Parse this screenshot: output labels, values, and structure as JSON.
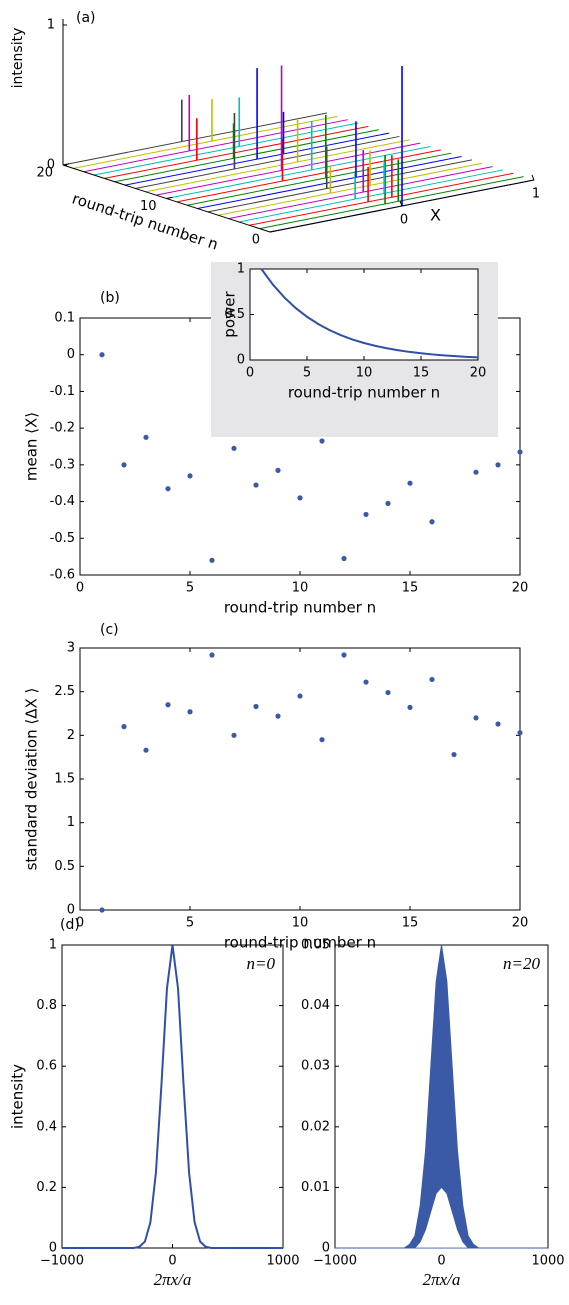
{
  "chart_data": [
    {
      "type": "waterfall",
      "panel_label": "(a)",
      "xlabel": "X",
      "ylabel": "round-trip number n",
      "zlabel": "intensity",
      "xlim": [
        -1,
        1
      ],
      "xticks": [
        0,
        1
      ],
      "ylim": [
        0,
        20
      ],
      "yticks": [
        0,
        10,
        20
      ],
      "zlim": [
        0,
        1
      ],
      "zticks": [
        0,
        1
      ],
      "colors": [
        "#0000ff",
        "#008000",
        "#ff0000",
        "#00bfbf",
        "#bf00bf",
        "#bfbf00",
        "#404040"
      ],
      "n": [
        0,
        1,
        1,
        2,
        2,
        3,
        3,
        4,
        5,
        5,
        6,
        7,
        8,
        9,
        10,
        11,
        12,
        13,
        14,
        14,
        15,
        16,
        17,
        18,
        19,
        20
      ],
      "x": [
        0,
        -0.05,
        0.05,
        -0.1,
        0.08,
        -0.12,
        0.1,
        0.02,
        -0.15,
        0.15,
        -0.1,
        0.2,
        0.05,
        -0.2,
        0.1,
        -0.05,
        0.15,
        -0.25,
        0.0,
        0.2,
        -0.1,
        -0.3,
        0.1,
        -0.2,
        0.05,
        -0.1
      ],
      "values": [
        1,
        0.35,
        0.3,
        0.25,
        0.3,
        0.2,
        0.22,
        0.3,
        0.2,
        0.25,
        0.3,
        0.4,
        0.45,
        0.3,
        0.35,
        0.75,
        0.3,
        0.4,
        0.65,
        0.3,
        0.25,
        0.3,
        0.35,
        0.4,
        0.3,
        0.3
      ]
    },
    {
      "type": "scatter",
      "panel_label": "(b)",
      "xlabel": "round-trip number n",
      "ylabel": "mean ⟨X⟩",
      "color": "#3a5aa8",
      "xlim": [
        0,
        20
      ],
      "xticks": [
        0,
        5,
        10,
        15,
        20
      ],
      "ylim": [
        -0.6,
        0.1
      ],
      "yticks": [
        -0.6,
        -0.5,
        -0.4,
        -0.3,
        -0.2,
        -0.1,
        0,
        0.1
      ],
      "x": [
        1,
        2,
        3,
        4,
        5,
        6,
        7,
        8,
        9,
        10,
        11,
        12,
        13,
        14,
        15,
        16,
        17,
        18,
        19,
        20
      ],
      "values": [
        0,
        -0.3,
        -0.225,
        -0.365,
        -0.33,
        -0.56,
        -0.255,
        -0.355,
        -0.315,
        -0.39,
        -0.235,
        -0.555,
        -0.435,
        -0.405,
        -0.35,
        -0.455,
        null,
        -0.32,
        -0.3,
        -0.265
      ]
    },
    {
      "type": "line",
      "xlabel": "round-trip number n",
      "ylabel": "power",
      "color": "#2f4fa8",
      "background": "#e6e6e8",
      "xlim": [
        0,
        20
      ],
      "xticks": [
        0,
        5,
        10,
        15,
        20
      ],
      "ylim": [
        0,
        1
      ],
      "yticks": [
        0,
        0.5,
        1
      ],
      "x": [
        1,
        2,
        3,
        4,
        5,
        6,
        7,
        8,
        9,
        10,
        11,
        12,
        13,
        14,
        15,
        16,
        17,
        18,
        19,
        20
      ],
      "values": [
        1,
        0.83,
        0.689,
        0.572,
        0.475,
        0.394,
        0.327,
        0.271,
        0.225,
        0.187,
        0.155,
        0.129,
        0.107,
        0.0887,
        0.0736,
        0.0611,
        0.0507,
        0.0421,
        0.0349,
        0.029
      ]
    },
    {
      "type": "scatter",
      "panel_label": "(c)",
      "xlabel": "round-trip number n",
      "ylabel": "standard deviation  ⟨ΔX ⟩",
      "color": "#3a5aa8",
      "xlim": [
        0,
        20
      ],
      "xticks": [
        0,
        5,
        10,
        15,
        20
      ],
      "ylim": [
        0,
        3
      ],
      "yticks": [
        0,
        0.5,
        1,
        1.5,
        2,
        2.5,
        3
      ],
      "x": [
        1,
        2,
        3,
        4,
        5,
        6,
        7,
        8,
        9,
        10,
        11,
        12,
        13,
        14,
        15,
        16,
        17,
        18,
        19,
        20
      ],
      "values": [
        0,
        2.1,
        1.83,
        2.35,
        2.27,
        2.92,
        2.0,
        2.33,
        2.22,
        2.45,
        1.95,
        2.92,
        2.61,
        2.49,
        2.32,
        2.64,
        1.78,
        2.2,
        2.13,
        2.03
      ]
    },
    {
      "type": "line",
      "panel_label": "(d)",
      "xlabel": "2πx/a",
      "ylabel": "intensity",
      "annotation": "n=0",
      "color": "#2f4fa8",
      "xlim": [
        -1000,
        1000
      ],
      "xticks": [
        {
          "value": -1000,
          "label": "−1000"
        },
        0,
        1000
      ],
      "ylim": [
        0,
        1
      ],
      "yticks": [
        0,
        0.2,
        0.4,
        0.6,
        0.8,
        1
      ],
      "x": [
        -1000,
        -500,
        -450,
        -400,
        -350,
        -300,
        -250,
        -200,
        -150,
        -100,
        -50,
        0,
        50,
        100,
        150,
        200,
        250,
        300,
        350,
        400,
        450,
        500,
        1000
      ],
      "values": [
        0,
        0,
        0,
        0,
        0,
        0.004,
        0.021,
        0.085,
        0.249,
        0.539,
        0.857,
        1,
        0.857,
        0.539,
        0.249,
        0.085,
        0.021,
        0.004,
        0,
        0,
        0,
        0,
        0
      ]
    },
    {
      "type": "area",
      "xlabel": "2πx/a",
      "annotation": "n=20",
      "color": "#3a5aa8",
      "xlim": [
        -1000,
        1000
      ],
      "xticks": [
        {
          "value": -1000,
          "label": "−1000"
        },
        0,
        1000
      ],
      "ylim": [
        0,
        0.05
      ],
      "yticks": [
        0,
        0.01,
        0.02,
        0.03,
        0.04,
        0.05
      ],
      "x": [
        -1000,
        -500,
        -450,
        -400,
        -350,
        -300,
        -250,
        -200,
        -150,
        -100,
        -50,
        0,
        50,
        100,
        150,
        200,
        250,
        300,
        350,
        400,
        450,
        500,
        1000
      ],
      "values": [
        0,
        0,
        0,
        0,
        0,
        0.0006,
        0.002,
        0.007,
        0.016,
        0.03,
        0.044,
        0.05,
        0.044,
        0.03,
        0.016,
        0.007,
        0.002,
        0.0006,
        0,
        0,
        0,
        0,
        0
      ],
      "lower": [
        0,
        0,
        0,
        0,
        0,
        0,
        0,
        0.001,
        0.003,
        0.006,
        0.009,
        0.01,
        0.009,
        0.006,
        0.003,
        0.001,
        0,
        0,
        0,
        0,
        0,
        0,
        0
      ]
    }
  ]
}
